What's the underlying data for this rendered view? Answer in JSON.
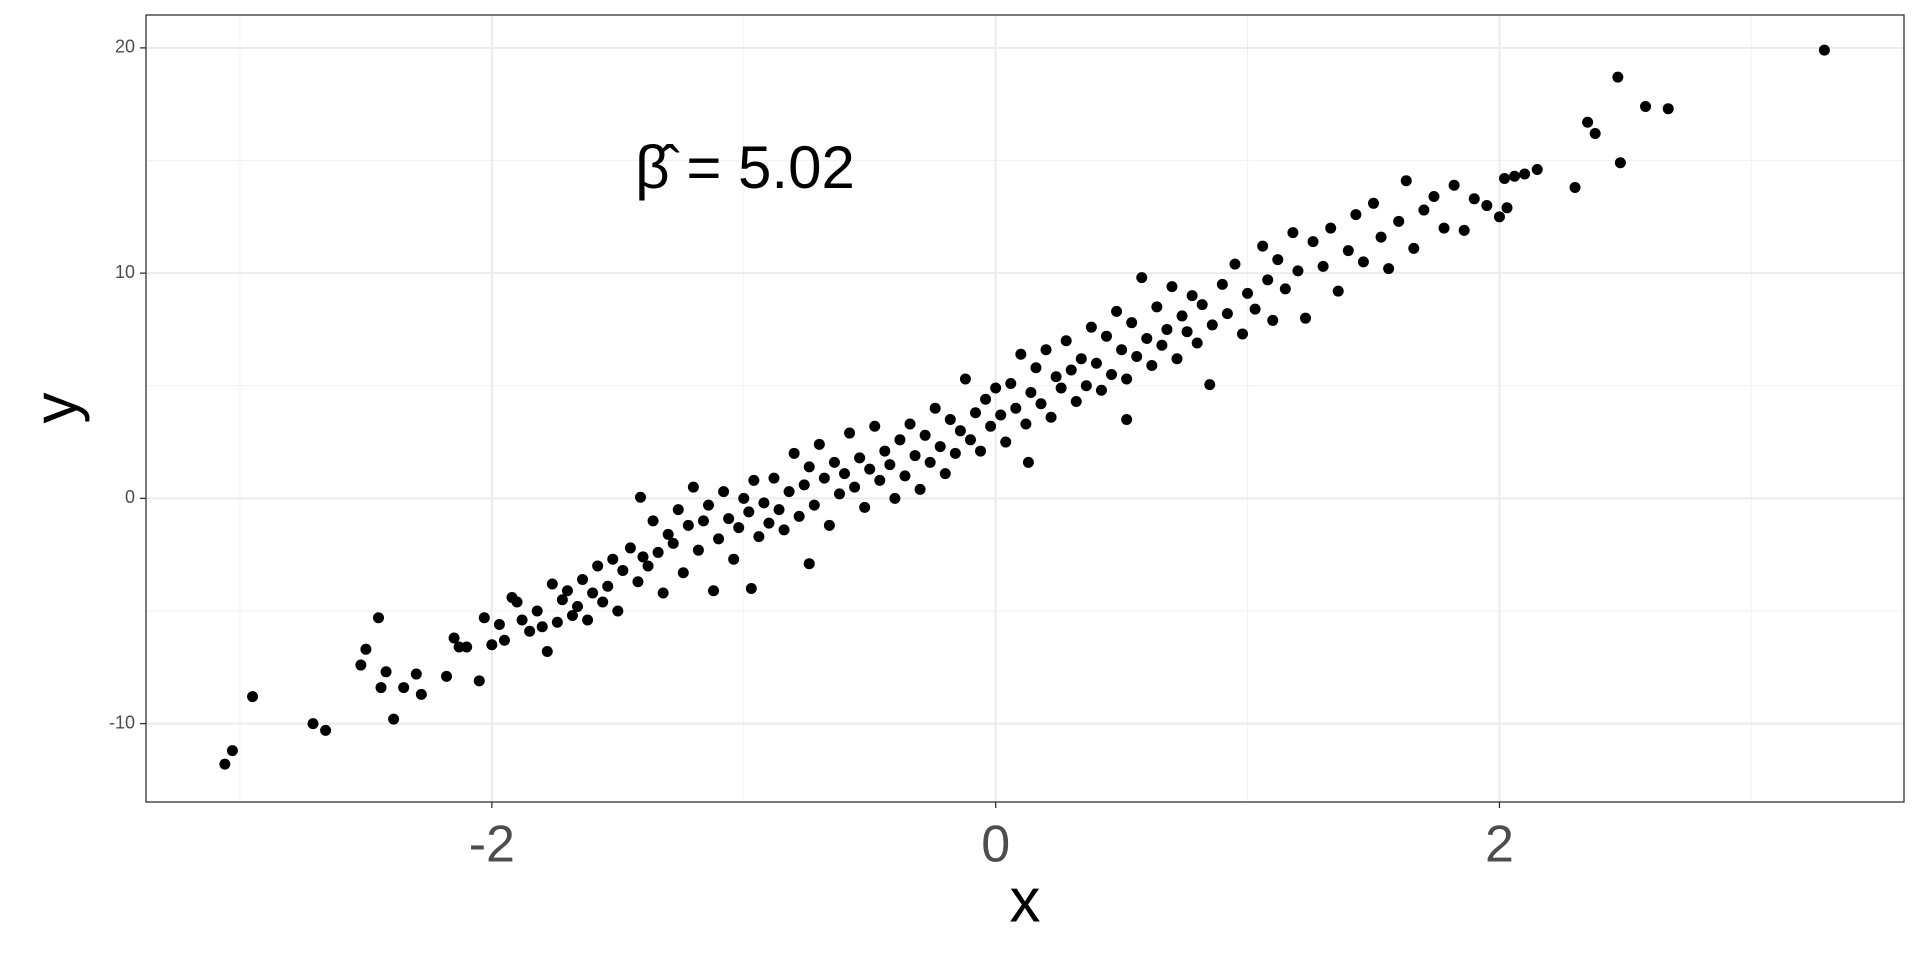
{
  "chart_data": {
    "type": "scatter",
    "annotation": "β̂ = 5.02",
    "xlabel": "x",
    "ylabel": "y",
    "xlim": [
      -3.373,
      3.606
    ],
    "ylim": [
      -13.48,
      21.46
    ],
    "xticks": [
      -2,
      0,
      2
    ],
    "yticks": [
      -10,
      0,
      10,
      20
    ],
    "xminor": [
      -3,
      -1,
      1,
      3
    ],
    "yminor": [
      -5,
      5,
      15
    ],
    "grid": true,
    "series": [
      {
        "color": "#000000",
        "x": [
          -2.3,
          -2.28,
          -2.35,
          -2.42,
          -2.44,
          -2.52,
          -2.5,
          -2.18,
          -2.15,
          -2.13,
          -2.1,
          -2.05,
          -2.03,
          -2.0,
          -1.97,
          -1.95,
          -1.92,
          -1.9,
          -1.88,
          -1.85,
          -1.82,
          -1.8,
          -1.78,
          -1.76,
          -1.74,
          -1.72,
          -1.7,
          -1.68,
          -1.66,
          -1.64,
          -1.62,
          -1.6,
          -1.58,
          -1.56,
          -1.54,
          -1.52,
          -1.5,
          -1.48,
          -1.45,
          -1.42,
          -1.4,
          -1.38,
          -1.36,
          -1.34,
          -1.32,
          -1.3,
          -1.28,
          -1.26,
          -1.24,
          -1.22,
          -1.2,
          -1.18,
          -1.16,
          -1.14,
          -1.12,
          -1.1,
          -1.08,
          -1.06,
          -1.04,
          -1.02,
          -1.0,
          -0.98,
          -0.96,
          -0.94,
          -0.92,
          -0.9,
          -0.88,
          -0.86,
          -0.84,
          -0.82,
          -0.8,
          -0.78,
          -0.76,
          -0.74,
          -0.72,
          -0.7,
          -0.68,
          -0.66,
          -0.64,
          -0.62,
          -0.6,
          -0.58,
          -0.56,
          -0.54,
          -0.52,
          -0.5,
          -0.48,
          -0.46,
          -0.44,
          -0.42,
          -0.4,
          -0.38,
          -0.36,
          -0.34,
          -0.32,
          -0.3,
          -0.28,
          -0.26,
          -0.24,
          -0.22,
          -0.2,
          -0.18,
          -0.16,
          -0.14,
          -0.12,
          -0.1,
          -0.08,
          -0.06,
          -0.04,
          -0.02,
          0.0,
          0.02,
          0.04,
          0.06,
          0.08,
          0.1,
          0.12,
          0.14,
          0.16,
          0.18,
          0.2,
          0.22,
          0.24,
          0.26,
          0.28,
          0.3,
          0.32,
          0.34,
          0.36,
          0.38,
          0.4,
          0.42,
          0.44,
          0.46,
          0.48,
          0.5,
          0.52,
          0.54,
          0.56,
          0.58,
          0.6,
          0.62,
          0.64,
          0.66,
          0.68,
          0.7,
          0.72,
          0.74,
          0.76,
          0.78,
          0.8,
          0.82,
          0.86,
          0.9,
          0.92,
          0.95,
          0.98,
          1.0,
          1.03,
          1.06,
          1.08,
          1.1,
          1.12,
          1.15,
          1.18,
          1.2,
          1.23,
          1.26,
          1.3,
          1.33,
          1.36,
          1.4,
          1.43,
          1.46,
          1.5,
          1.53,
          1.56,
          1.6,
          1.63,
          1.66,
          1.7,
          1.74,
          1.78,
          1.82,
          1.86,
          1.9,
          1.95,
          2.02,
          2.03,
          2.06,
          2.1,
          2.0,
          3.29,
          2.47,
          2.58,
          2.67,
          -3.06,
          -3.03,
          -2.95,
          -2.71,
          -2.66,
          -2.39,
          -2.45,
          2.35,
          2.38,
          2.48,
          2.3,
          2.15,
          0.85,
          -0.74,
          -0.97,
          -1.41,
          0.13,
          0.52
        ],
        "y": [
          -7.8,
          -8.7,
          -8.4,
          -7.7,
          -8.4,
          -7.4,
          -6.7,
          -7.9,
          -6.2,
          -6.6,
          -6.6,
          -8.1,
          -5.3,
          -6.5,
          -5.6,
          -6.3,
          -4.4,
          -4.6,
          -5.4,
          -5.9,
          -5.0,
          -5.7,
          -6.8,
          -3.8,
          -5.5,
          -4.5,
          -4.1,
          -5.2,
          -4.8,
          -3.6,
          -5.4,
          -4.2,
          -3.0,
          -4.6,
          -3.9,
          -2.7,
          -5.0,
          -3.2,
          -2.2,
          -3.7,
          -2.6,
          -3.0,
          -1.0,
          -2.4,
          -4.2,
          -1.6,
          -2.0,
          -0.5,
          -3.3,
          -1.2,
          0.5,
          -2.3,
          -1.0,
          -0.3,
          -4.1,
          -1.8,
          0.3,
          -0.9,
          -2.7,
          -1.3,
          0.0,
          -0.6,
          0.8,
          -1.7,
          -0.2,
          -1.1,
          0.9,
          -0.5,
          -1.4,
          0.3,
          2.0,
          -0.8,
          0.6,
          1.4,
          -0.3,
          2.4,
          0.9,
          -1.2,
          1.6,
          0.2,
          1.1,
          2.9,
          0.5,
          1.8,
          -0.4,
          1.3,
          3.2,
          0.8,
          2.1,
          1.5,
          0.0,
          2.6,
          1.0,
          3.3,
          1.9,
          0.4,
          2.8,
          1.6,
          4.0,
          2.3,
          1.1,
          3.5,
          2.0,
          3.0,
          5.3,
          2.6,
          3.8,
          2.1,
          4.4,
          3.2,
          4.9,
          3.7,
          2.5,
          5.1,
          4.0,
          6.4,
          3.3,
          4.7,
          5.8,
          4.2,
          6.6,
          3.6,
          5.4,
          4.9,
          7.0,
          5.7,
          4.3,
          6.2,
          5.0,
          7.6,
          6.0,
          4.8,
          7.2,
          5.5,
          8.3,
          6.6,
          5.3,
          7.8,
          6.3,
          9.8,
          7.1,
          5.9,
          8.5,
          6.8,
          7.5,
          9.4,
          6.2,
          8.1,
          7.4,
          9.0,
          6.9,
          8.6,
          7.7,
          9.5,
          8.2,
          10.4,
          7.3,
          9.1,
          8.4,
          11.2,
          9.7,
          7.9,
          10.6,
          9.3,
          11.8,
          10.1,
          8.0,
          11.4,
          10.3,
          12.0,
          9.2,
          11.0,
          12.6,
          10.5,
          13.1,
          11.6,
          10.2,
          12.3,
          14.1,
          11.1,
          12.8,
          13.4,
          12.0,
          13.9,
          11.9,
          13.3,
          13.0,
          14.2,
          12.9,
          14.3,
          14.4,
          12.5,
          19.9,
          18.7,
          17.4,
          17.3,
          -11.8,
          -11.2,
          -8.8,
          -10.0,
          -10.3,
          -9.8,
          -5.3,
          16.7,
          16.2,
          14.9,
          13.8,
          14.6,
          5.05,
          -2.9,
          -4.0,
          0.05,
          1.6,
          3.5
        ]
      }
    ]
  }
}
